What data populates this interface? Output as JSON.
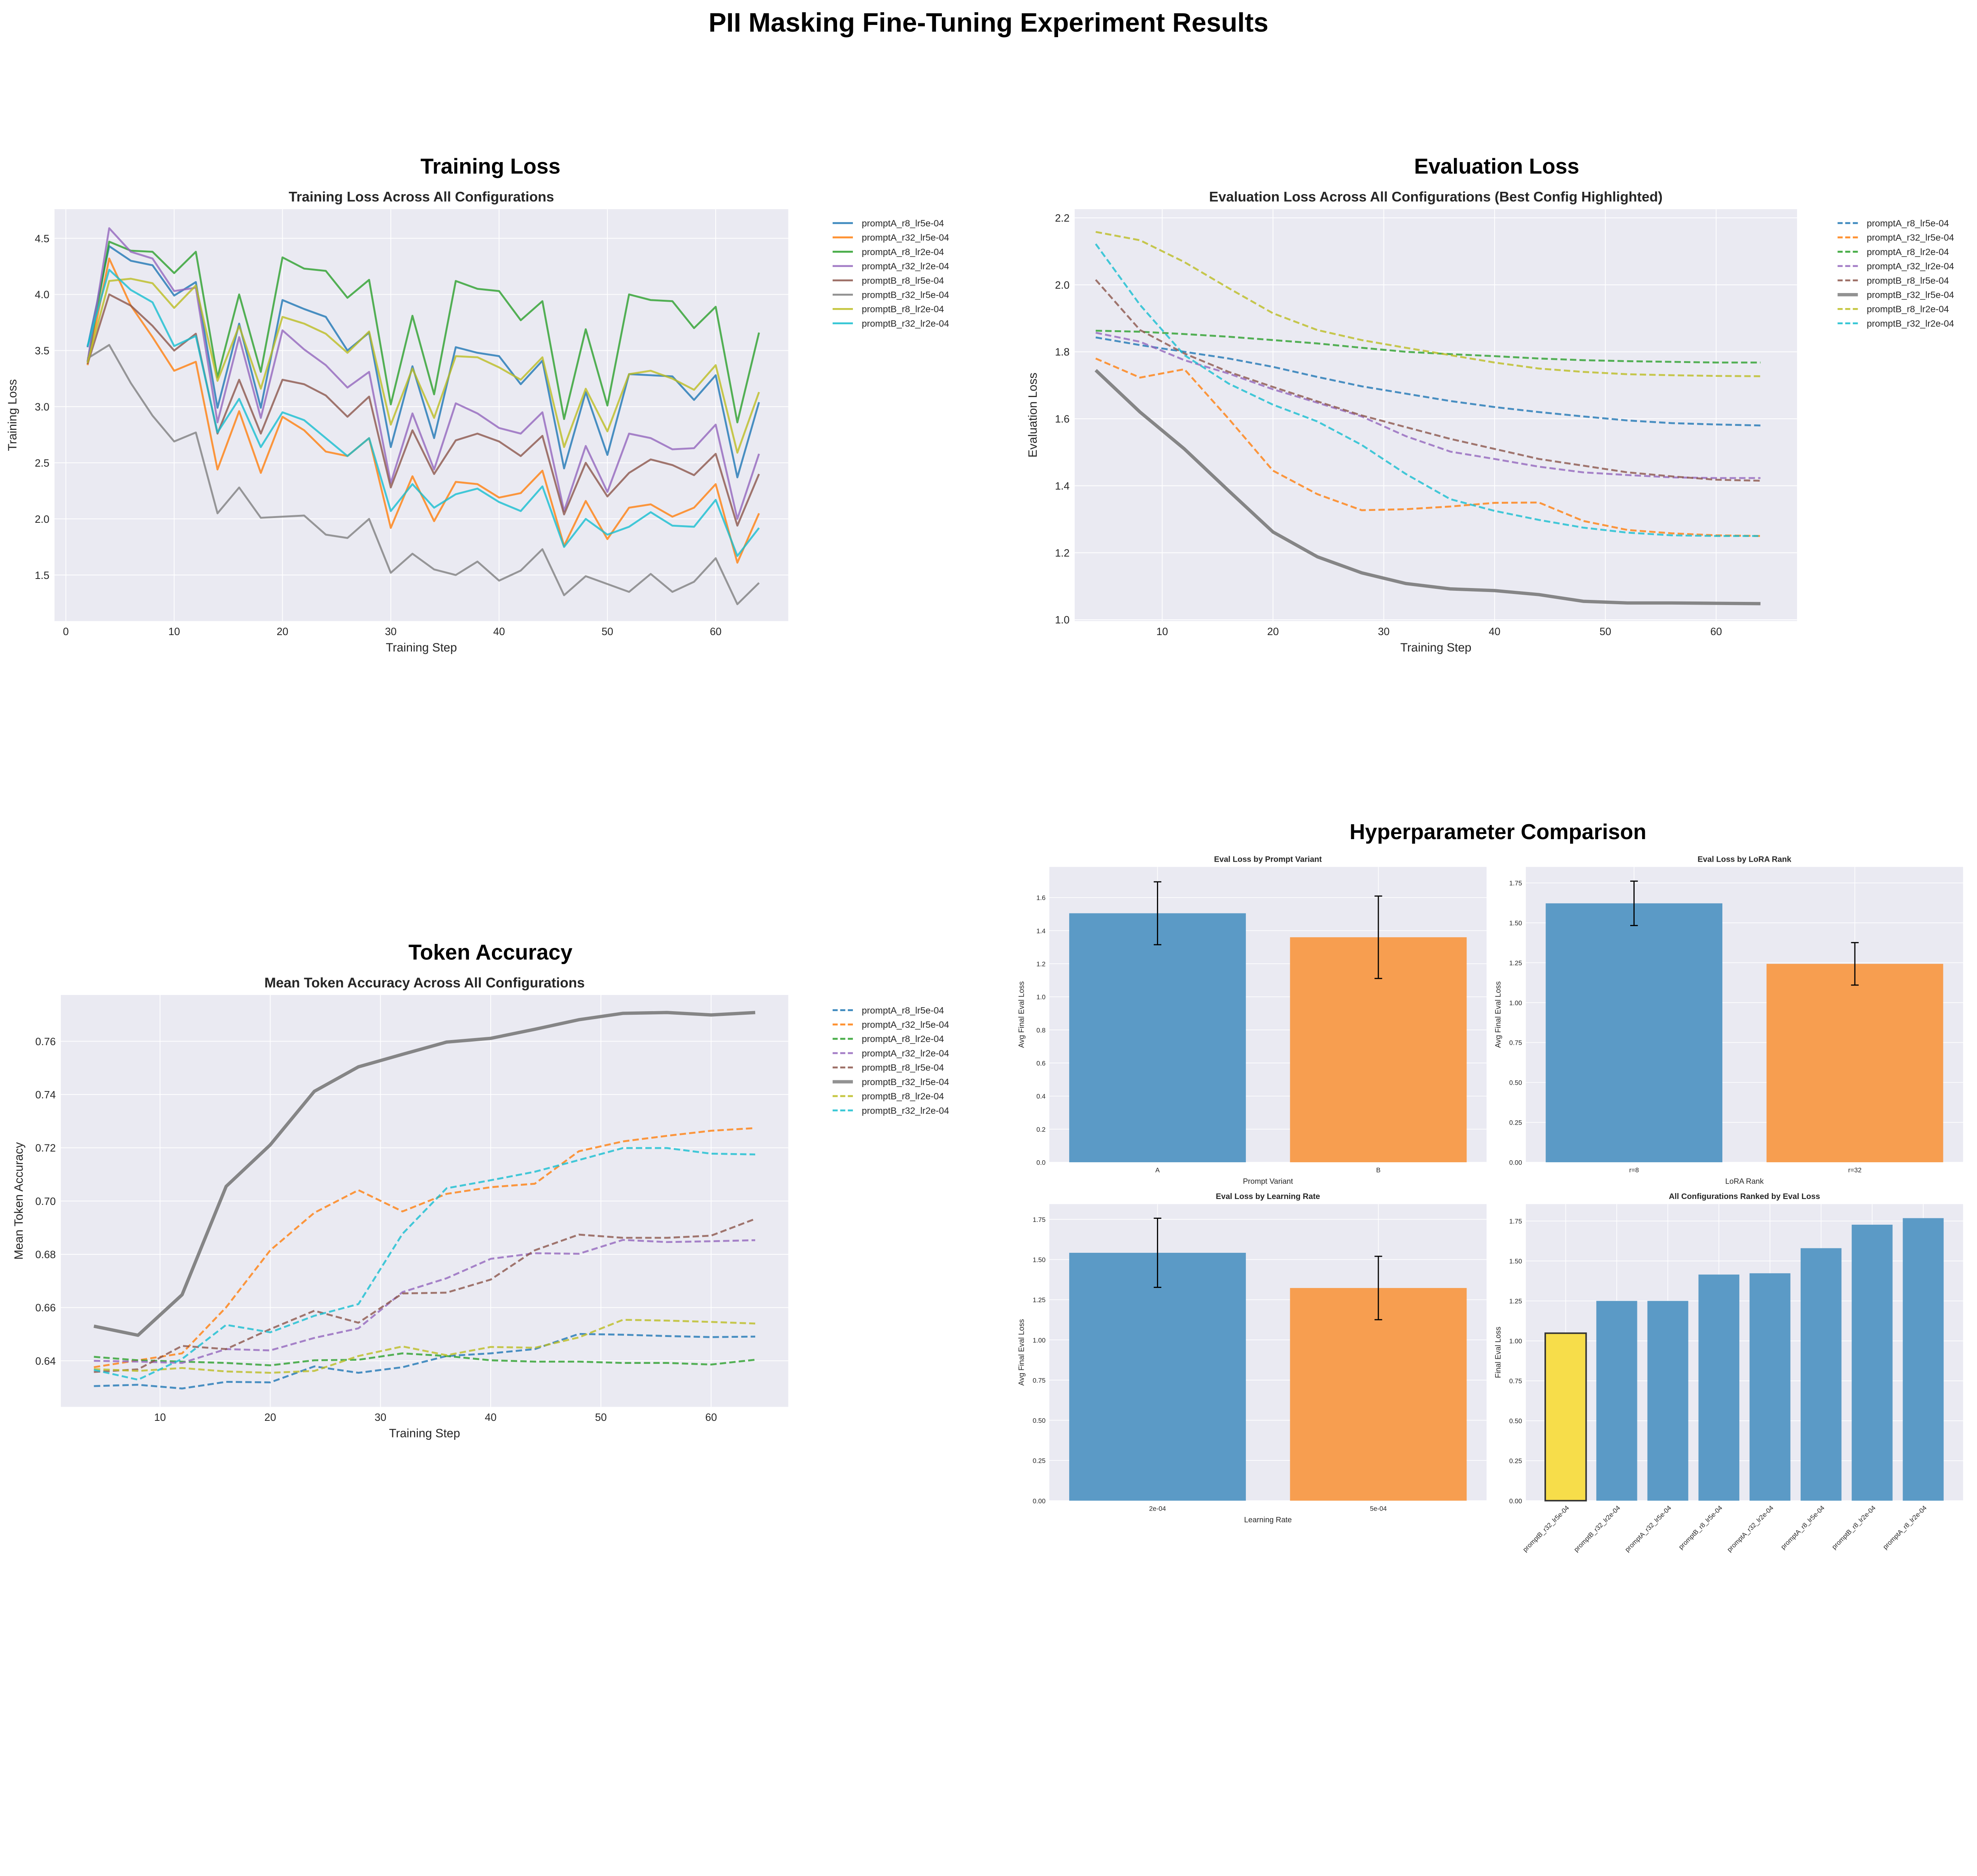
{
  "main_title": "PII Masking Fine-Tuning Experiment Results",
  "sections": {
    "training": "Training Loss",
    "evaluation": "Evaluation Loss",
    "accuracy": "Token Accuracy",
    "hyperparameters": "Hyperparameter Comparison"
  },
  "colors": {
    "background": "#eaeaf2",
    "grid": "#ffffff",
    "bar_blue": "#5b9ac6",
    "bar_orange": "#f79e50",
    "best_highlight": "#f7dd4a"
  },
  "chart_data": [
    {
      "type": "line",
      "title": "Training Loss Across All Configurations",
      "xlabel": "Training Step",
      "ylabel": "Training Loss",
      "xlim": [
        -1.05,
        66.7
      ],
      "ylim": [
        1.09,
        4.76
      ],
      "xticks": [
        "0",
        "10",
        "20",
        "30",
        "40",
        "50",
        "60"
      ],
      "yticks": [
        "1.5",
        "2.0",
        "2.5",
        "3.0",
        "3.5",
        "4.0",
        "4.5"
      ],
      "grid": true,
      "legend": "outside-right",
      "x": [
        2,
        4,
        6,
        8,
        10,
        12,
        14,
        16,
        18,
        20,
        22,
        24,
        26,
        28,
        30,
        32,
        34,
        36,
        38,
        40,
        42,
        44,
        46,
        48,
        50,
        52,
        54,
        56,
        58,
        60,
        62,
        64
      ],
      "series": [
        {
          "name": "promptA_r8_lr5e-04",
          "color": "#1f77b4",
          "style": "solid",
          "values": [
            3.53,
            4.43,
            4.3,
            4.26,
            3.99,
            4.11,
            2.99,
            3.74,
            2.99,
            3.95,
            3.87,
            3.8,
            3.5,
            3.66,
            2.64,
            3.36,
            2.72,
            3.53,
            3.48,
            3.45,
            3.2,
            3.41,
            2.45,
            3.13,
            2.57,
            3.29,
            3.28,
            3.27,
            3.06,
            3.28,
            2.37,
            3.04
          ]
        },
        {
          "name": "promptA_r32_lr5e-04",
          "color": "#ff7f0e",
          "style": "solid",
          "values": [
            3.37,
            4.32,
            3.9,
            3.62,
            3.32,
            3.4,
            2.44,
            2.96,
            2.41,
            2.91,
            2.79,
            2.6,
            2.56,
            2.72,
            1.92,
            2.38,
            1.98,
            2.33,
            2.31,
            2.19,
            2.23,
            2.43,
            1.76,
            2.16,
            1.82,
            2.1,
            2.13,
            2.02,
            2.1,
            2.31,
            1.61,
            2.05
          ]
        },
        {
          "name": "promptA_r8_lr2e-04",
          "color": "#2ca02c",
          "style": "solid",
          "values": [
            3.4,
            4.47,
            4.39,
            4.38,
            4.19,
            4.38,
            3.26,
            4.0,
            3.31,
            4.33,
            4.23,
            4.21,
            3.97,
            4.13,
            3.02,
            3.81,
            3.11,
            4.12,
            4.05,
            4.03,
            3.77,
            3.94,
            2.89,
            3.69,
            3.01,
            4.0,
            3.95,
            3.94,
            3.7,
            3.89,
            2.86,
            3.66
          ]
        },
        {
          "name": "promptA_r32_lr2e-04",
          "color": "#9467bd",
          "style": "solid",
          "values": [
            3.4,
            4.59,
            4.38,
            4.32,
            4.03,
            4.06,
            2.86,
            3.62,
            2.9,
            3.68,
            3.51,
            3.37,
            3.17,
            3.31,
            2.32,
            2.94,
            2.44,
            3.03,
            2.94,
            2.81,
            2.76,
            2.95,
            2.07,
            2.65,
            2.24,
            2.76,
            2.72,
            2.62,
            2.63,
            2.84,
            2.0,
            2.58
          ]
        },
        {
          "name": "promptB_r8_lr5e-04",
          "color": "#8c564b",
          "style": "solid",
          "values": [
            3.38,
            4.0,
            3.9,
            3.72,
            3.5,
            3.65,
            2.76,
            3.24,
            2.76,
            3.24,
            3.2,
            3.1,
            2.91,
            3.09,
            2.28,
            2.79,
            2.4,
            2.7,
            2.76,
            2.69,
            2.56,
            2.74,
            2.04,
            2.5,
            2.2,
            2.41,
            2.53,
            2.48,
            2.39,
            2.58,
            1.94,
            2.4
          ]
        },
        {
          "name": "promptB_r32_lr5e-04",
          "color": "#7f7f7f",
          "style": "solid",
          "values": [
            3.43,
            3.55,
            3.21,
            2.92,
            2.69,
            2.77,
            2.05,
            2.28,
            2.01,
            2.02,
            2.03,
            1.86,
            1.83,
            2.0,
            1.52,
            1.69,
            1.55,
            1.5,
            1.62,
            1.45,
            1.54,
            1.73,
            1.32,
            1.49,
            1.42,
            1.35,
            1.51,
            1.35,
            1.44,
            1.65,
            1.24,
            1.43
          ]
        },
        {
          "name": "promptB_r8_lr2e-04",
          "color": "#bcbd22",
          "style": "solid",
          "values": [
            3.39,
            4.12,
            4.14,
            4.1,
            3.88,
            4.08,
            3.23,
            3.72,
            3.16,
            3.8,
            3.74,
            3.65,
            3.48,
            3.67,
            2.84,
            3.34,
            2.9,
            3.45,
            3.44,
            3.35,
            3.24,
            3.44,
            2.64,
            3.16,
            2.78,
            3.29,
            3.32,
            3.25,
            3.15,
            3.37,
            2.59,
            3.13
          ]
        },
        {
          "name": "promptB_r32_lr2e-04",
          "color": "#17becf",
          "style": "solid",
          "values": [
            3.54,
            4.22,
            4.04,
            3.93,
            3.54,
            3.63,
            2.77,
            3.07,
            2.64,
            2.95,
            2.88,
            2.72,
            2.56,
            2.72,
            2.07,
            2.31,
            2.1,
            2.22,
            2.27,
            2.15,
            2.07,
            2.29,
            1.75,
            2.0,
            1.86,
            1.93,
            2.06,
            1.94,
            1.93,
            2.17,
            1.67,
            1.92
          ]
        }
      ]
    },
    {
      "type": "line",
      "title": "Evaluation Loss Across All Configurations (Best Config Highlighted)",
      "xlabel": "Training Step",
      "ylabel": "Evaluation Loss",
      "xlim": [
        2.1,
        67.3
      ],
      "ylim": [
        0.996,
        2.226
      ],
      "xticks": [
        "10",
        "20",
        "30",
        "40",
        "50",
        "60"
      ],
      "yticks": [
        "1.0",
        "1.2",
        "1.4",
        "1.6",
        "1.8",
        "2.0",
        "2.2"
      ],
      "grid": true,
      "legend": "outside-right",
      "x": [
        4,
        8,
        12,
        16,
        20,
        24,
        28,
        32,
        36,
        40,
        44,
        48,
        52,
        56,
        60,
        64
      ],
      "series": [
        {
          "name": "promptA_r8_lr5e-04",
          "color": "#1f77b4",
          "style": "dashed",
          "values": [
            1.843,
            1.82,
            1.8,
            1.78,
            1.755,
            1.725,
            1.697,
            1.675,
            1.653,
            1.635,
            1.62,
            1.607,
            1.595,
            1.587,
            1.583,
            1.58
          ]
        },
        {
          "name": "promptA_r32_lr5e-04",
          "color": "#ff7f0e",
          "style": "dashed",
          "values": [
            1.78,
            1.723,
            1.748,
            1.6,
            1.445,
            1.375,
            1.327,
            1.33,
            1.338,
            1.349,
            1.35,
            1.295,
            1.268,
            1.258,
            1.252,
            1.25
          ]
        },
        {
          "name": "promptA_r8_lr2e-04",
          "color": "#2ca02c",
          "style": "dashed",
          "values": [
            1.863,
            1.86,
            1.853,
            1.845,
            1.835,
            1.825,
            1.812,
            1.8,
            1.793,
            1.787,
            1.78,
            1.775,
            1.772,
            1.77,
            1.768,
            1.768
          ]
        },
        {
          "name": "promptA_r32_lr2e-04",
          "color": "#9467bd",
          "style": "dashed",
          "values": [
            1.857,
            1.83,
            1.775,
            1.735,
            1.688,
            1.648,
            1.607,
            1.548,
            1.502,
            1.48,
            1.457,
            1.44,
            1.432,
            1.425,
            1.423,
            1.423
          ]
        },
        {
          "name": "promptB_r8_lr5e-04",
          "color": "#8c564b",
          "style": "dashed",
          "values": [
            2.015,
            1.865,
            1.795,
            1.74,
            1.695,
            1.652,
            1.61,
            1.575,
            1.54,
            1.51,
            1.48,
            1.46,
            1.44,
            1.428,
            1.418,
            1.415
          ]
        },
        {
          "name": "promptB_r32_lr5e-04",
          "color": "#7f7f7f",
          "style": "solid",
          "highlight": true,
          "values": [
            1.745,
            1.62,
            1.51,
            1.385,
            1.262,
            1.188,
            1.14,
            1.108,
            1.092,
            1.087,
            1.075,
            1.055,
            1.05,
            1.05,
            1.049,
            1.048
          ]
        },
        {
          "name": "promptB_r8_lr2e-04",
          "color": "#bcbd22",
          "style": "dashed",
          "values": [
            2.158,
            2.133,
            2.068,
            1.99,
            1.915,
            1.865,
            1.835,
            1.812,
            1.79,
            1.768,
            1.75,
            1.74,
            1.733,
            1.73,
            1.728,
            1.727
          ]
        },
        {
          "name": "promptB_r32_lr2e-04",
          "color": "#17becf",
          "style": "dashed",
          "values": [
            2.122,
            1.94,
            1.79,
            1.705,
            1.642,
            1.592,
            1.522,
            1.435,
            1.36,
            1.325,
            1.298,
            1.275,
            1.26,
            1.252,
            1.25,
            1.25
          ]
        }
      ]
    },
    {
      "type": "line",
      "title": "Mean Token Accuracy Across All Configurations",
      "xlabel": "Training Step",
      "ylabel": "Mean Token Accuracy",
      "xlim": [
        1.0,
        67.0
      ],
      "ylim": [
        0.6227,
        0.7774
      ],
      "xticks": [
        "10",
        "20",
        "30",
        "40",
        "50",
        "60"
      ],
      "yticks": [
        "0.64",
        "0.66",
        "0.68",
        "0.70",
        "0.72",
        "0.74",
        "0.76"
      ],
      "grid": true,
      "legend": "outside-right",
      "x": [
        4,
        8,
        12,
        16,
        20,
        24,
        28,
        32,
        36,
        40,
        44,
        48,
        52,
        56,
        60,
        64
      ],
      "series": [
        {
          "name": "promptA_r8_lr5e-04",
          "color": "#1f77b4",
          "style": "dashed",
          "values": [
            0.6305,
            0.631,
            0.6296,
            0.6321,
            0.6319,
            0.6379,
            0.6355,
            0.6376,
            0.6418,
            0.6428,
            0.6444,
            0.6501,
            0.6498,
            0.6493,
            0.6489,
            0.6491
          ]
        },
        {
          "name": "promptA_r32_lr5e-04",
          "color": "#ff7f0e",
          "style": "dashed",
          "values": [
            0.6376,
            0.6402,
            0.6428,
            0.6601,
            0.6815,
            0.6956,
            0.7041,
            0.6961,
            0.7027,
            0.7052,
            0.7065,
            0.7187,
            0.7224,
            0.7245,
            0.7264,
            0.7274
          ]
        },
        {
          "name": "promptA_r8_lr2e-04",
          "color": "#2ca02c",
          "style": "dashed",
          "values": [
            0.6415,
            0.6402,
            0.6397,
            0.6392,
            0.6383,
            0.6402,
            0.6404,
            0.6428,
            0.6418,
            0.6402,
            0.6397,
            0.6397,
            0.6392,
            0.6392,
            0.6386,
            0.6404
          ]
        },
        {
          "name": "promptA_r32_lr2e-04",
          "color": "#9467bd",
          "style": "dashed",
          "values": [
            0.64,
            0.6397,
            0.6392,
            0.6444,
            0.6439,
            0.6486,
            0.6522,
            0.6658,
            0.671,
            0.6783,
            0.6804,
            0.6802,
            0.6854,
            0.6846,
            0.6849,
            0.6853
          ]
        },
        {
          "name": "promptB_r8_lr5e-04",
          "color": "#8c564b",
          "style": "dashed",
          "values": [
            0.6358,
            0.6368,
            0.6456,
            0.6444,
            0.6519,
            0.6588,
            0.6543,
            0.6653,
            0.6656,
            0.6705,
            0.6815,
            0.6874,
            0.6862,
            0.6862,
            0.687,
            0.6933
          ]
        },
        {
          "name": "promptB_r32_lr5e-04",
          "color": "#7f7f7f",
          "style": "solid",
          "highlight": true,
          "values": [
            0.653,
            0.6496,
            0.6648,
            0.7055,
            0.7211,
            0.7412,
            0.7504,
            0.7551,
            0.7597,
            0.7611,
            0.7645,
            0.7681,
            0.7705,
            0.7708,
            0.7699,
            0.7708
          ]
        },
        {
          "name": "promptB_r8_lr2e-04",
          "color": "#bcbd22",
          "style": "dashed",
          "values": [
            0.6369,
            0.6362,
            0.6373,
            0.636,
            0.6355,
            0.6362,
            0.6418,
            0.6454,
            0.6421,
            0.6452,
            0.6449,
            0.6488,
            0.6554,
            0.6551,
            0.6546,
            0.654
          ]
        },
        {
          "name": "promptB_r32_lr2e-04",
          "color": "#17becf",
          "style": "dashed",
          "values": [
            0.6366,
            0.6329,
            0.6407,
            0.6535,
            0.6507,
            0.6569,
            0.6613,
            0.6877,
            0.7048,
            0.7078,
            0.711,
            0.7154,
            0.7199,
            0.7199,
            0.7178,
            0.7175
          ]
        }
      ]
    },
    {
      "type": "bar",
      "title": "Eval Loss by Prompt Variant",
      "xlabel": "Prompt Variant",
      "ylabel": "Avg Final Eval Loss",
      "categories": [
        "A",
        "B"
      ],
      "values": [
        1.505,
        1.36
      ],
      "errors": [
        0.19,
        0.249
      ],
      "colors": [
        "#5b9ac6",
        "#f79e50"
      ],
      "ylim": [
        0,
        1.785
      ],
      "yticks": [
        "0.0",
        "0.2",
        "0.4",
        "0.6",
        "0.8",
        "1.0",
        "1.2",
        "1.4",
        "1.6"
      ]
    },
    {
      "type": "bar",
      "title": "Eval Loss by LoRA Rank",
      "xlabel": "LoRA Rank",
      "ylabel": "Avg Final Eval Loss",
      "categories": [
        "r=8",
        "r=32"
      ],
      "values": [
        1.622,
        1.243
      ],
      "errors": [
        0.139,
        0.133
      ],
      "colors": [
        "#5b9ac6",
        "#f79e50"
      ],
      "ylim": [
        0,
        1.85
      ],
      "yticks": [
        "0.00",
        "0.25",
        "0.50",
        "0.75",
        "1.00",
        "1.25",
        "1.50",
        "1.75"
      ]
    },
    {
      "type": "bar",
      "title": "Eval Loss by Learning Rate",
      "xlabel": "Learning Rate",
      "ylabel": "Avg Final Eval Loss",
      "categories": [
        "2e-04",
        "5e-04"
      ],
      "values": [
        1.542,
        1.323
      ],
      "errors": [
        0.215,
        0.197
      ],
      "colors": [
        "#5b9ac6",
        "#f79e50"
      ],
      "ylim": [
        0,
        1.845
      ],
      "yticks": [
        "0.00",
        "0.25",
        "0.50",
        "0.75",
        "1.00",
        "1.25",
        "1.50",
        "1.75"
      ]
    },
    {
      "type": "bar",
      "title": "All Configurations Ranked by Eval Loss",
      "xlabel": "",
      "ylabel": "Final Eval Loss",
      "categories": [
        "promptB_r32_lr5e-04",
        "promptB_r32_lr2e-04",
        "promptA_r32_lr5e-04",
        "promptB_r8_lr5e-04",
        "promptA_r32_lr2e-04",
        "promptA_r8_lr5e-04",
        "promptB_r8_lr2e-04",
        "promptA_r8_lr2e-04"
      ],
      "values": [
        1.048,
        1.25,
        1.25,
        1.415,
        1.423,
        1.58,
        1.727,
        1.768
      ],
      "colors": [
        "#f7dd4a",
        "#5b9ac6",
        "#5b9ac6",
        "#5b9ac6",
        "#5b9ac6",
        "#5b9ac6",
        "#5b9ac6",
        "#5b9ac6"
      ],
      "highlight_index": 0,
      "rotated_labels": true,
      "ylim": [
        0,
        1.856
      ],
      "yticks": [
        "0.00",
        "0.25",
        "0.50",
        "0.75",
        "1.00",
        "1.25",
        "1.50",
        "1.75"
      ]
    }
  ]
}
